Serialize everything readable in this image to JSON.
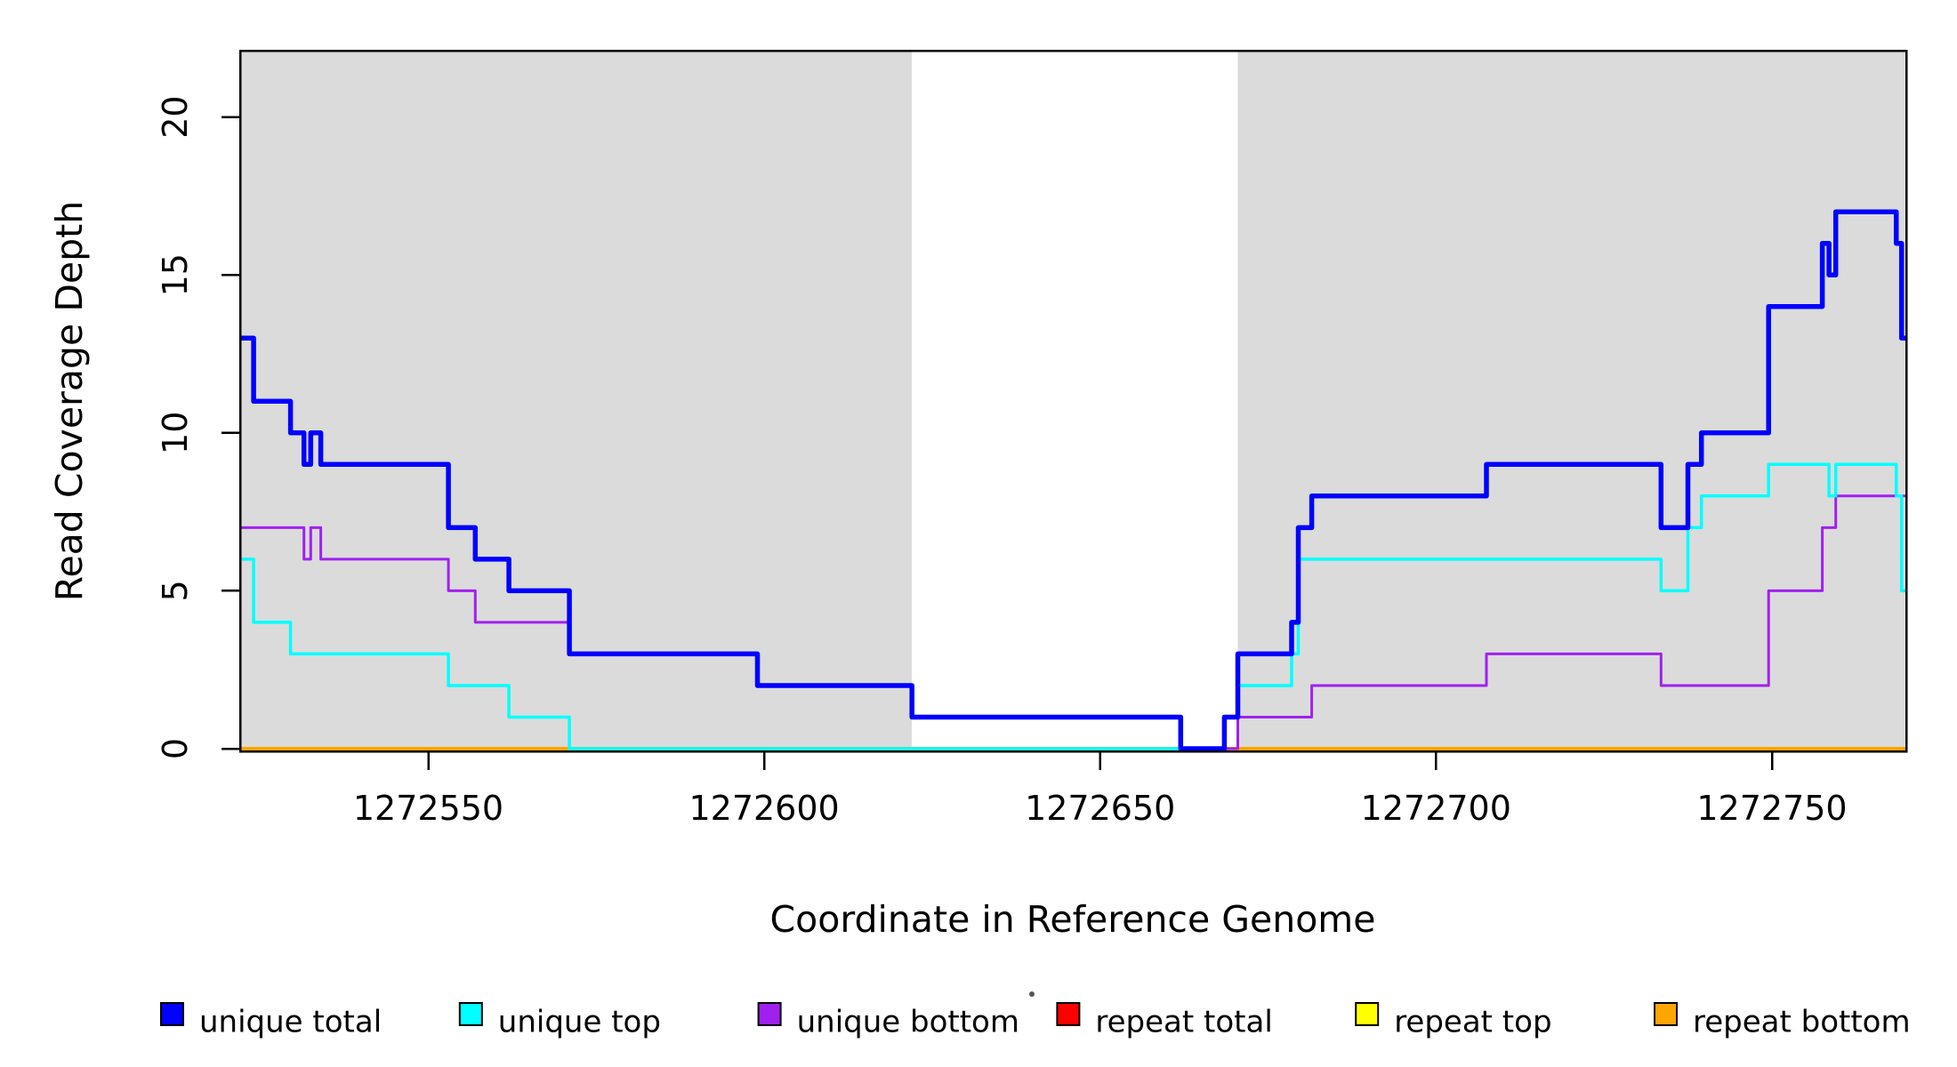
{
  "figure": {
    "xlabel": "Coordinate in Reference Genome",
    "ylabel": "Read Coverage Depth"
  },
  "chart_data": {
    "type": "line",
    "subtype": "step-post",
    "title": "",
    "xlabel": "Coordinate in Reference Genome",
    "ylabel": "Read Coverage Depth",
    "xlim": [
      1272522,
      1272770
    ],
    "ylim": [
      0,
      22.1
    ],
    "x_ticks": [
      1272550,
      1272600,
      1272650,
      1272700,
      1272750
    ],
    "y_ticks": [
      0,
      5,
      10,
      15,
      20
    ],
    "grid": false,
    "legend_position": "bottom",
    "background_color": "#ffffff",
    "shaded_regions": {
      "color": "#DBDBDB",
      "ranges": [
        [
          1272522,
          1272622
        ],
        [
          1272670.5,
          1272770
        ]
      ]
    },
    "series": [
      {
        "name": "repeat total",
        "color": "#FF0000",
        "width": 3,
        "points": [
          [
            1272522,
            0
          ],
          [
            1272770,
            0
          ]
        ]
      },
      {
        "name": "repeat top",
        "color": "#FFFF00",
        "width": 3,
        "points": [
          [
            1272522,
            0
          ],
          [
            1272770,
            0
          ]
        ]
      },
      {
        "name": "repeat bottom",
        "color": "#FFA500",
        "width": 4,
        "points": [
          [
            1272522,
            0
          ],
          [
            1272770,
            0
          ]
        ]
      },
      {
        "name": "unique bottom",
        "color": "#A020F0",
        "width": 3,
        "points": [
          [
            1272522,
            7
          ],
          [
            1272531.5,
            6
          ],
          [
            1272532.5,
            7
          ],
          [
            1272534,
            6
          ],
          [
            1272553,
            5
          ],
          [
            1272557,
            4
          ],
          [
            1272571,
            3
          ],
          [
            1272599,
            2
          ],
          [
            1272622,
            1
          ],
          [
            1272662,
            0
          ],
          [
            1272670.5,
            1
          ],
          [
            1272681.5,
            2
          ],
          [
            1272707.5,
            3
          ],
          [
            1272733.5,
            2
          ],
          [
            1272749.5,
            5
          ],
          [
            1272757.5,
            7
          ],
          [
            1272759.5,
            8
          ]
        ]
      },
      {
        "name": "unique top",
        "color": "#00FFFF",
        "width": 3.5,
        "points": [
          [
            1272522,
            6
          ],
          [
            1272524,
            4
          ],
          [
            1272529.5,
            3
          ],
          [
            1272553,
            2
          ],
          [
            1272562,
            1
          ],
          [
            1272571,
            0
          ],
          [
            1272668.5,
            1
          ],
          [
            1272670.5,
            2
          ],
          [
            1272678.5,
            3
          ],
          [
            1272679.5,
            6
          ],
          [
            1272733.5,
            5
          ],
          [
            1272737.5,
            7
          ],
          [
            1272739.5,
            8
          ],
          [
            1272749.5,
            9
          ],
          [
            1272758.5,
            8
          ],
          [
            1272759.5,
            9
          ],
          [
            1272768.5,
            8
          ],
          [
            1272769.3,
            5
          ]
        ]
      },
      {
        "name": "unique total",
        "color": "#0000FF",
        "width": 5.5,
        "points": [
          [
            1272522,
            13
          ],
          [
            1272524,
            11
          ],
          [
            1272529.5,
            10
          ],
          [
            1272531.5,
            9
          ],
          [
            1272532.5,
            10
          ],
          [
            1272534,
            9
          ],
          [
            1272553,
            7
          ],
          [
            1272557,
            6
          ],
          [
            1272562,
            5
          ],
          [
            1272571,
            3
          ],
          [
            1272599,
            2
          ],
          [
            1272622,
            1
          ],
          [
            1272662,
            0
          ],
          [
            1272668.5,
            1
          ],
          [
            1272670.5,
            3
          ],
          [
            1272678.5,
            4
          ],
          [
            1272679.5,
            7
          ],
          [
            1272681.5,
            8
          ],
          [
            1272707.5,
            9
          ],
          [
            1272733.5,
            7
          ],
          [
            1272737.5,
            9
          ],
          [
            1272739.5,
            10
          ],
          [
            1272749.5,
            14
          ],
          [
            1272757.5,
            16
          ],
          [
            1272758.5,
            15
          ],
          [
            1272759.5,
            17
          ],
          [
            1272768.5,
            16
          ],
          [
            1272769.3,
            13
          ]
        ]
      }
    ],
    "legend": [
      {
        "label": "unique total",
        "color": "#0000FF"
      },
      {
        "label": "unique top",
        "color": "#00FFFF"
      },
      {
        "label": "unique bottom",
        "color": "#A020F0"
      },
      {
        "label": "repeat total",
        "color": "#FF0000"
      },
      {
        "label": "repeat top",
        "color": "#FFFF00"
      },
      {
        "label": "repeat bottom",
        "color": "#FFA500"
      }
    ]
  }
}
